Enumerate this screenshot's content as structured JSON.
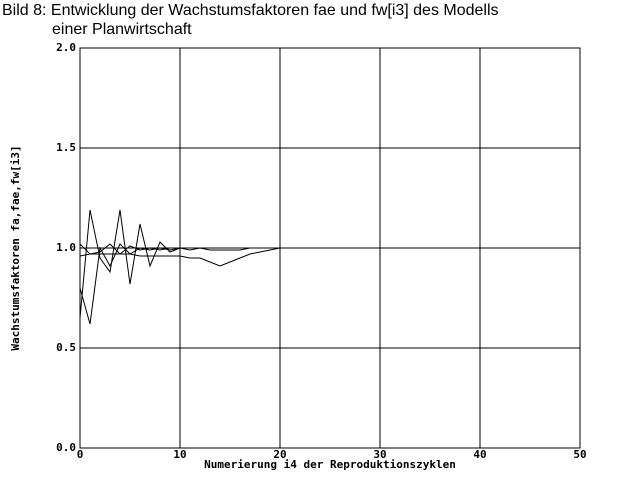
{
  "chart_data": {
    "type": "line",
    "title": [
      "Bild 8: Entwicklung der Wachstumsfaktoren fae und fw[i3] des Modells",
      "einer Planwirtschaft"
    ],
    "x_label": "Numerierung i4 der Reproduktionszyklen",
    "y_label": "Wachstumsfaktoren fa,fae,fw[i3]",
    "x": [
      0,
      1,
      2,
      3,
      4,
      5,
      6,
      7,
      8,
      9,
      10,
      11,
      12,
      13,
      14,
      15,
      16,
      17,
      18,
      19,
      20,
      50
    ],
    "series": [
      {
        "color": "#000000",
        "values": [
          0.65,
          1.19,
          0.95,
          0.88,
          1.19,
          0.82,
          1.12,
          0.91,
          1.03,
          0.98,
          1.0,
          1.0,
          1.0,
          1.0,
          1.0,
          1.0,
          1.0,
          1.0,
          1.0,
          1.0,
          1.0,
          1.0
        ]
      },
      {
        "color": "#000000",
        "values": [
          0.8,
          0.62,
          1.0,
          0.91,
          1.02,
          0.97,
          1.0,
          0.99,
          1.0,
          0.99,
          1.0,
          0.99,
          1.0,
          0.99,
          0.99,
          0.99,
          0.99,
          1.0,
          1.0,
          1.0,
          1.0,
          1.0
        ]
      },
      {
        "color": "#000000",
        "values": [
          0.96,
          0.97,
          0.97,
          0.97,
          0.97,
          0.97,
          0.96,
          0.96,
          0.96,
          0.96,
          0.96,
          0.95,
          0.95,
          0.93,
          0.91,
          0.93,
          0.95,
          0.97,
          0.98,
          0.99,
          1.0,
          1.0
        ]
      },
      {
        "color": "#000000",
        "values": [
          1.02,
          0.97,
          0.98,
          1.02,
          0.97,
          1.01,
          0.99,
          1.0,
          0.99,
          1.0,
          1.0,
          1.0,
          1.0,
          1.0,
          1.0,
          1.0,
          1.0,
          1.0,
          1.0,
          1.0,
          1.0,
          1.0
        ]
      }
    ],
    "xlim": [
      0,
      50
    ],
    "xticks": [
      0,
      10,
      20,
      30,
      40,
      50
    ],
    "ylim": [
      0,
      2
    ],
    "yticks": [
      {
        "value": 0,
        "label": "0.0"
      },
      0.5,
      {
        "value": 1,
        "label": "1.0"
      },
      1.5,
      {
        "value": 2,
        "label": "2.0"
      }
    ],
    "grid": true
  }
}
